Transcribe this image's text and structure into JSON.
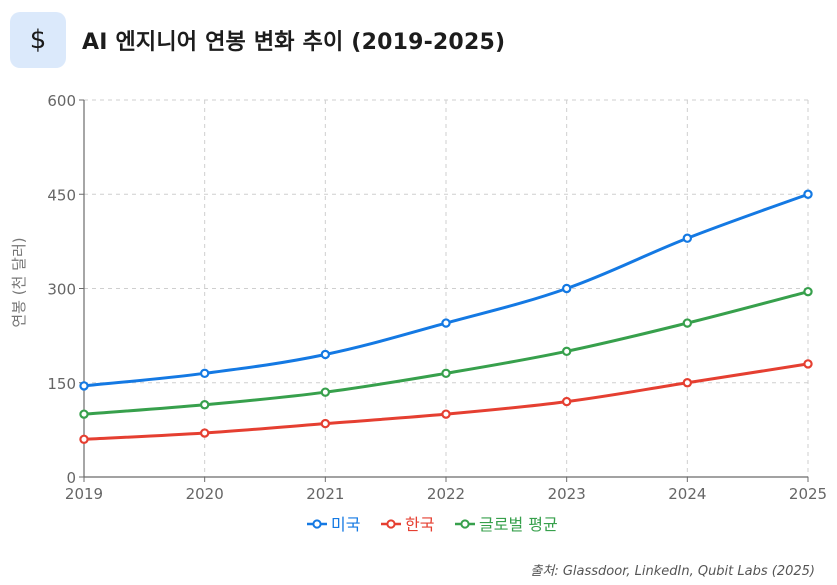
{
  "header": {
    "icon": "dollar-icon",
    "icon_glyph": "$",
    "title": "AI 엔지니어 연봉 변화 추이 (2019-2025)"
  },
  "source": "출처: Glassdoor, LinkedIn, Qubit Labs (2025)",
  "chart_data": {
    "type": "line",
    "title": "AI 엔지니어 연봉 변화 추이 (2019-2025)",
    "xlabel": "",
    "ylabel": "연봉 (천 달러)",
    "x": [
      "2019",
      "2020",
      "2021",
      "2022",
      "2023",
      "2024",
      "2025"
    ],
    "ylim": [
      0,
      600
    ],
    "yticks": [
      0,
      150,
      300,
      450,
      600
    ],
    "grid": true,
    "legend_position": "bottom",
    "series": [
      {
        "name": "미국",
        "color": "#1479e3",
        "values": [
          145,
          165,
          195,
          245,
          300,
          380,
          450
        ]
      },
      {
        "name": "한국",
        "color": "#e53f31",
        "values": [
          60,
          70,
          85,
          100,
          120,
          150,
          180
        ]
      },
      {
        "name": "글로벌 평균",
        "color": "#37a04c",
        "values": [
          100,
          115,
          135,
          165,
          200,
          245,
          295
        ]
      }
    ]
  }
}
